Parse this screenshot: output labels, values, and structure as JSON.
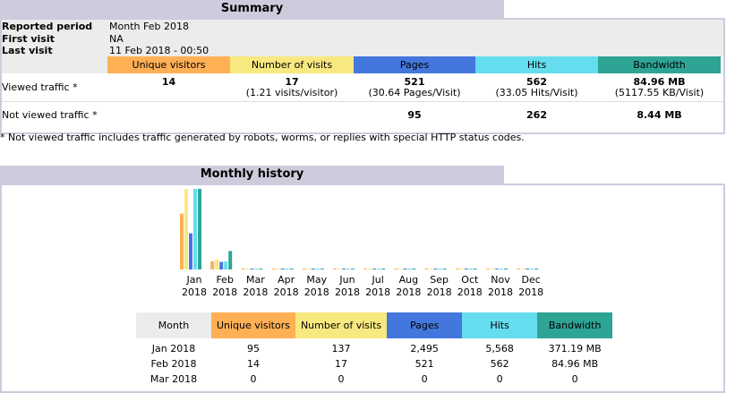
{
  "summary": {
    "title": "Summary",
    "info": [
      [
        "Reported period",
        "Month Feb 2018"
      ],
      [
        "First visit",
        "NA"
      ],
      [
        "Last visit",
        "11 Feb 2018 - 00:50"
      ]
    ],
    "columns": [
      "Unique visitors",
      "Number of visits",
      "Pages",
      "Hits",
      "Bandwidth"
    ],
    "viewed": {
      "label": "Viewed traffic *",
      "unique": "14",
      "visits": "17",
      "visits_note": "(1.21 visits/visitor)",
      "pages": "521",
      "pages_note": "(30.64 Pages/Visit)",
      "hits": "562",
      "hits_note": "(33.05 Hits/Visit)",
      "bandwidth": "84.96 MB",
      "bandwidth_note": "(5117.55 KB/Visit)"
    },
    "not_viewed": {
      "label": "Not viewed traffic *",
      "pages": "95",
      "hits": "262",
      "bandwidth": "8.44 MB"
    },
    "footnote": "* Not viewed traffic includes traffic generated by robots, worms, or replies with special HTTP status codes."
  },
  "history": {
    "title": "Monthly history",
    "chart": {
      "months": [
        "Jan",
        "Feb",
        "Mar",
        "Apr",
        "May",
        "Jun",
        "Jul",
        "Aug",
        "Sep",
        "Oct",
        "Nov",
        "Dec"
      ],
      "years": [
        "2018",
        "2018",
        "2018",
        "2018",
        "2018",
        "2018",
        "2018",
        "2018",
        "2018",
        "2018",
        "2018",
        "2018"
      ],
      "series": [
        {
          "color": "#ffb055",
          "values": [
            95,
            14,
            0,
            0,
            0,
            0,
            0,
            0,
            0,
            0,
            0,
            0
          ]
        },
        {
          "color": "#f8e880",
          "values": [
            137,
            17,
            0,
            0,
            0,
            0,
            0,
            0,
            0,
            0,
            0,
            0
          ]
        },
        {
          "color": "#4477dd",
          "values": [
            2495,
            521,
            0,
            0,
            0,
            0,
            0,
            0,
            0,
            0,
            0,
            0
          ]
        },
        {
          "color": "#66ddee",
          "values": [
            5568,
            562,
            0,
            0,
            0,
            0,
            0,
            0,
            0,
            0,
            0,
            0
          ]
        },
        {
          "color": "#2ea495",
          "values": [
            371.19,
            84.96,
            0,
            0,
            0,
            0,
            0,
            0,
            0,
            0,
            0,
            0
          ]
        }
      ]
    },
    "table": {
      "columns": [
        "Month",
        "Unique visitors",
        "Number of visits",
        "Pages",
        "Hits",
        "Bandwidth"
      ],
      "rows": [
        [
          "Jan 2018",
          "95",
          "137",
          "2,495",
          "5,568",
          "371.19 MB"
        ],
        [
          "Feb 2018",
          "14",
          "17",
          "521",
          "562",
          "84.96 MB"
        ],
        [
          "Mar 2018",
          "0",
          "0",
          "0",
          "0",
          "0"
        ]
      ]
    }
  }
}
